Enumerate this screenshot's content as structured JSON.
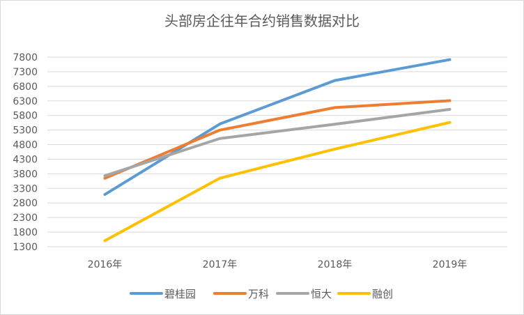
{
  "chart_data": {
    "type": "line",
    "title": "头部房企往年合约销售数据对比",
    "categories": [
      "2016年",
      "2017年",
      "2018年",
      "2019年"
    ],
    "yticks": [
      1300,
      1800,
      2300,
      2800,
      3300,
      3800,
      4300,
      4800,
      5300,
      5800,
      6300,
      6800,
      7300,
      7800
    ],
    "ylim": [
      1300,
      7800
    ],
    "grid": true,
    "legend_position": "bottom",
    "series": [
      {
        "name": "碧桂园",
        "color": "#5b9bd5",
        "values": [
          3090,
          5508,
          7000,
          7715
        ]
      },
      {
        "name": "万科",
        "color": "#ed7d31",
        "values": [
          3648,
          5299,
          6070,
          6308
        ]
      },
      {
        "name": "恒大",
        "color": "#a5a5a5",
        "values": [
          3733,
          5010,
          5500,
          6011
        ]
      },
      {
        "name": "融创",
        "color": "#ffc000",
        "values": [
          1506,
          3650,
          4647,
          5562
        ]
      }
    ]
  }
}
